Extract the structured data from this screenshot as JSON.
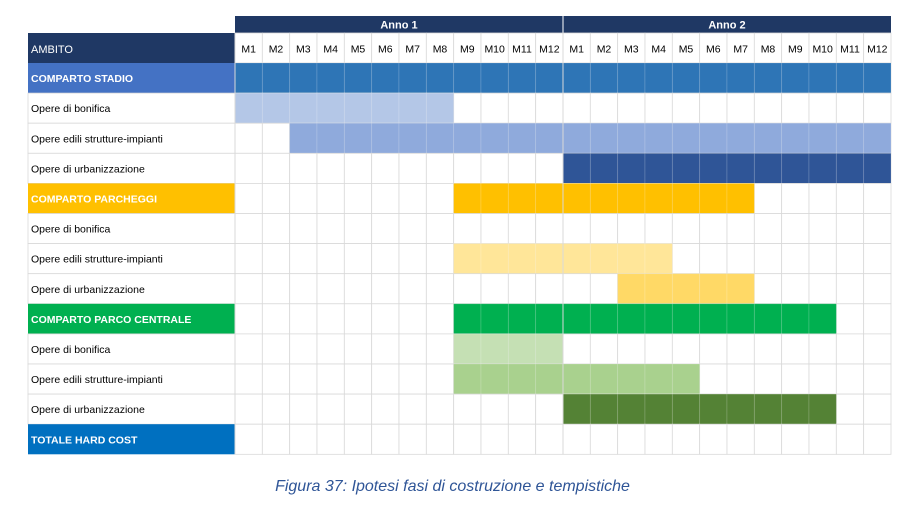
{
  "caption": "Figura 37: Ipotesi fasi di costruzione e tempistiche",
  "chart_data": {
    "type": "gantt",
    "column_header": "AMBITO",
    "years": [
      "Anno 1",
      "Anno 2"
    ],
    "months": [
      "M1",
      "M2",
      "M3",
      "M4",
      "M5",
      "M6",
      "M7",
      "M8",
      "M9",
      "M10",
      "M11",
      "M12",
      "M1",
      "M2",
      "M3",
      "M4",
      "M5",
      "M6",
      "M7",
      "M8",
      "M9",
      "M10",
      "M11",
      "M12"
    ],
    "x_unit": "month index (1-24)",
    "rows": [
      {
        "label": "COMPARTO STADIO",
        "kind": "group",
        "label_bg": "#4472c4",
        "label_color": "#ffffff",
        "start": 1,
        "end": 24,
        "color": "#2e75b6"
      },
      {
        "label": "Opere di bonifica",
        "kind": "task",
        "start": 1,
        "end": 8,
        "color": "#b4c7e7"
      },
      {
        "label": "Opere edili strutture-impianti",
        "kind": "task",
        "start": 3,
        "end": 24,
        "color": "#8faadc"
      },
      {
        "label": "Opere di urbanizzazione",
        "kind": "task",
        "start": 13,
        "end": 24,
        "color": "#2f5597"
      },
      {
        "label": "COMPARTO PARCHEGGI",
        "kind": "group",
        "label_bg": "#ffc000",
        "label_color": "#ffffff",
        "start": 9,
        "end": 19,
        "color": "#ffc000"
      },
      {
        "label": "Opere di bonifica",
        "kind": "task",
        "start": null,
        "end": null,
        "color": null
      },
      {
        "label": "Opere edili strutture-impianti",
        "kind": "task",
        "start": 9,
        "end": 16,
        "color": "#ffe699"
      },
      {
        "label": "Opere di urbanizzazione",
        "kind": "task",
        "start": 15,
        "end": 19,
        "color": "#ffd966"
      },
      {
        "label": "COMPARTO PARCO CENTRALE",
        "kind": "group",
        "label_bg": "#00b050",
        "label_color": "#ffffff",
        "start": 9,
        "end": 22,
        "color": "#00b050"
      },
      {
        "label": "Opere di bonifica",
        "kind": "task",
        "start": 9,
        "end": 12,
        "color": "#c5e0b4"
      },
      {
        "label": "Opere edili strutture-impianti",
        "kind": "task",
        "start": 9,
        "end": 17,
        "color": "#a9d18e"
      },
      {
        "label": "Opere di urbanizzazione",
        "kind": "task",
        "start": 13,
        "end": 22,
        "color": "#548235"
      },
      {
        "label": "TOTALE HARD COST",
        "kind": "total",
        "label_bg": "#0070c0",
        "label_color": "#ffffff",
        "start": null,
        "end": null,
        "color": null
      }
    ],
    "colors": {
      "header_dark": "#1f3864",
      "header_text": "#ffffff",
      "grid": "#d9d9d9",
      "task_text": "#000000"
    }
  }
}
